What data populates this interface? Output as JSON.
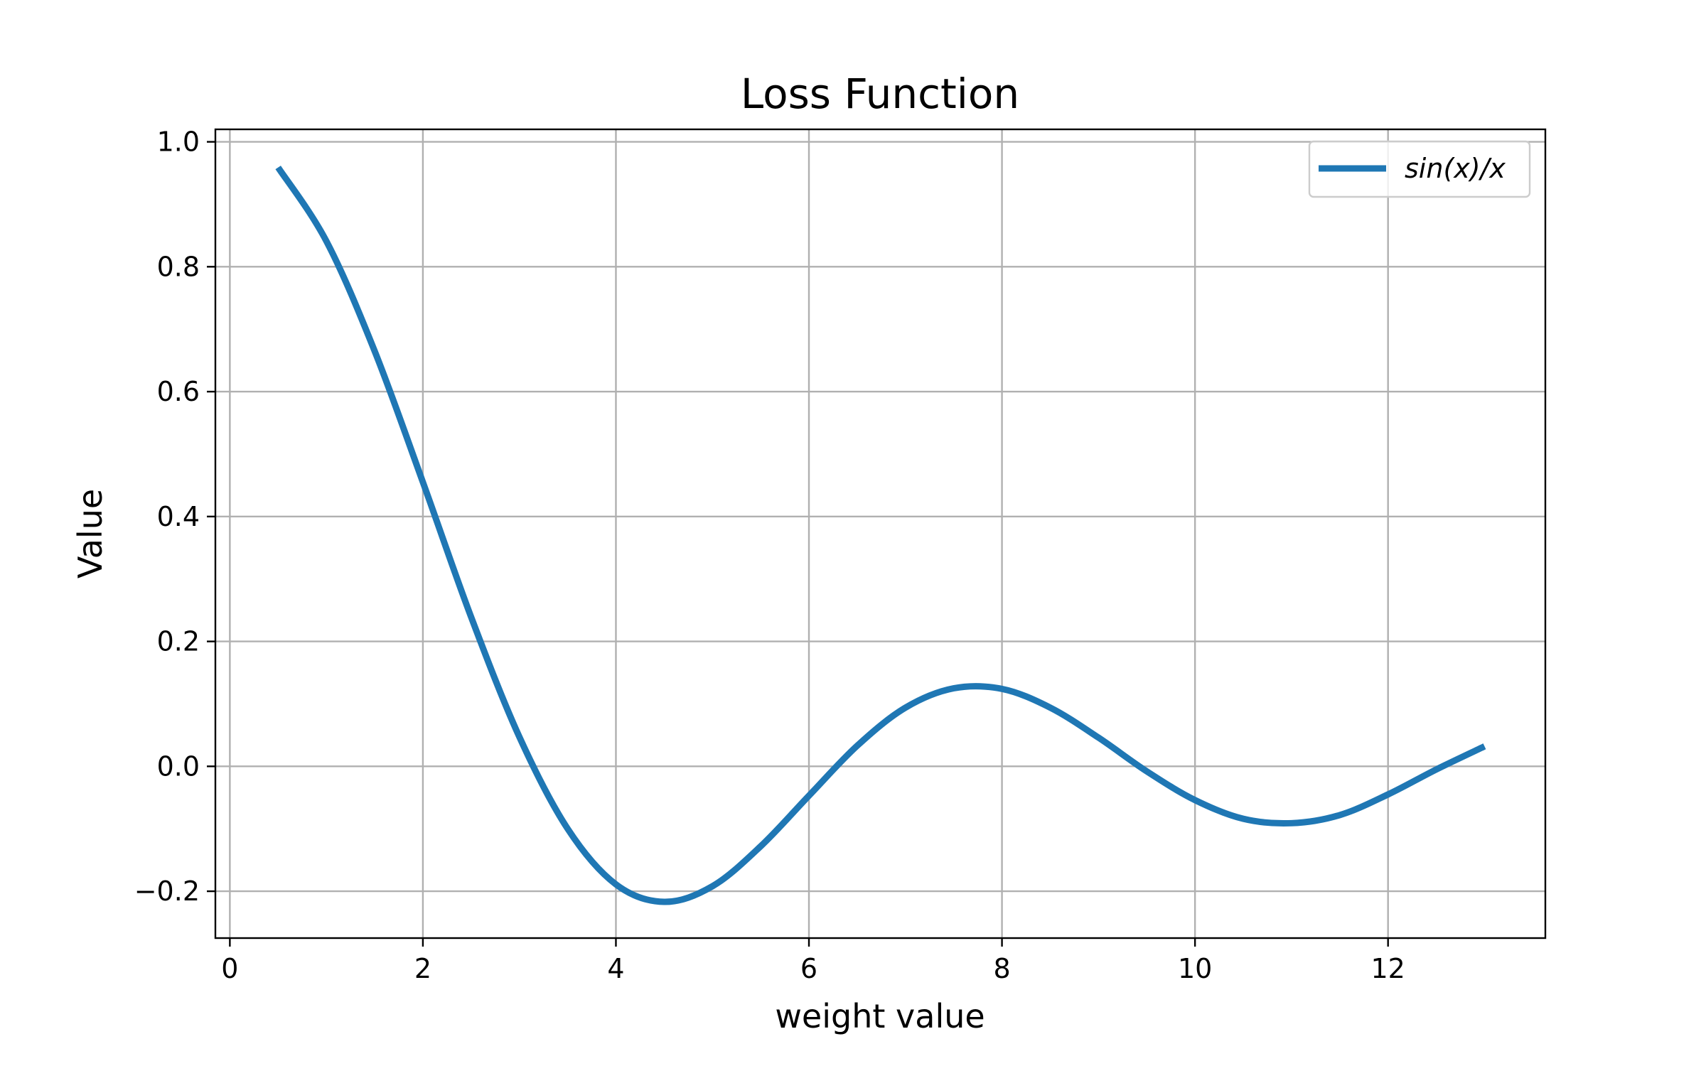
{
  "chart_data": {
    "type": "line",
    "title": "Loss Function",
    "xlabel": "weight value",
    "ylabel": "Value",
    "xlim": [
      -0.15,
      13.63
    ],
    "ylim": [
      -0.275,
      1.02
    ],
    "xticks": [
      0,
      2,
      4,
      6,
      8,
      10,
      12
    ],
    "xtick_labels": [
      "0",
      "2",
      "4",
      "6",
      "8",
      "10",
      "12"
    ],
    "yticks": [
      -0.2,
      0.0,
      0.2,
      0.4,
      0.6,
      0.8,
      1.0
    ],
    "ytick_labels": [
      "−0.2",
      "0.0",
      "0.2",
      "0.4",
      "0.6",
      "0.8",
      "1.0"
    ],
    "grid": true,
    "legend_position": "top-right",
    "series": [
      {
        "name": "sin(x)/x",
        "color": "#1f77b4",
        "x": [
          0.5,
          1.0,
          1.5,
          2.0,
          2.5,
          3.0,
          3.5,
          4.0,
          4.5,
          5.0,
          5.5,
          6.0,
          6.5,
          7.0,
          7.5,
          8.0,
          8.5,
          9.0,
          9.5,
          10.0,
          10.5,
          11.0,
          11.5,
          12.0,
          12.5,
          13.0
        ],
        "y": [
          0.959,
          0.841,
          0.665,
          0.455,
          0.239,
          0.047,
          -0.1,
          -0.189,
          -0.217,
          -0.192,
          -0.128,
          -0.047,
          0.033,
          0.094,
          0.125,
          0.124,
          0.094,
          0.046,
          -0.008,
          -0.054,
          -0.084,
          -0.091,
          -0.078,
          -0.045,
          -0.005,
          0.032
        ]
      }
    ]
  }
}
